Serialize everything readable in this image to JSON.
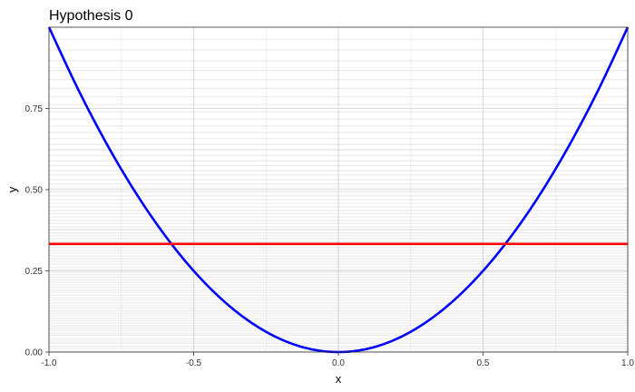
{
  "chart_data": {
    "type": "line",
    "title": "Hypothesis 0",
    "xlabel": "x",
    "ylabel": "y",
    "xlim": [
      -1.0,
      1.0
    ],
    "ylim": [
      0.0,
      1.0
    ],
    "grid": true,
    "legend": "none",
    "x_ticks": [
      -1.0,
      -0.5,
      0.0,
      0.5,
      1.0
    ],
    "x_tick_labels": [
      "-1.0",
      "-0.5",
      "0.0",
      "0.5",
      "1.0"
    ],
    "y_ticks": [
      0.0,
      0.25,
      0.5,
      0.75
    ],
    "y_tick_labels": [
      "0.00",
      "0.25",
      "0.50",
      "0.75"
    ],
    "series": [
      {
        "color": "#0000ff",
        "x": [
          -1.0,
          -0.9,
          -0.8,
          -0.7,
          -0.6,
          -0.5,
          -0.4,
          -0.3,
          -0.2,
          -0.1,
          0.0,
          0.1,
          0.2,
          0.3,
          0.4,
          0.5,
          0.6,
          0.7,
          0.8,
          0.9,
          1.0
        ],
        "y": [
          1.0,
          0.81,
          0.64,
          0.49,
          0.36,
          0.25,
          0.16,
          0.09,
          0.04,
          0.01,
          0.0,
          0.01,
          0.04,
          0.09,
          0.16,
          0.25,
          0.36,
          0.49,
          0.64,
          0.81,
          1.0
        ]
      },
      {
        "color": "#ff0000",
        "x": [
          -1.0,
          1.0
        ],
        "y": [
          0.333,
          0.333
        ]
      }
    ],
    "background_lines": {
      "color": "#000000",
      "y": [
        0.003,
        0.011,
        0.018,
        0.027,
        0.034,
        0.041,
        0.052,
        0.058,
        0.066,
        0.073,
        0.081,
        0.089,
        0.097,
        0.104,
        0.112,
        0.119,
        0.128,
        0.136,
        0.143,
        0.151,
        0.16,
        0.167,
        0.175,
        0.183,
        0.19,
        0.199,
        0.207,
        0.214,
        0.222,
        0.23,
        0.238,
        0.247,
        0.254,
        0.262,
        0.271,
        0.279,
        0.287,
        0.296,
        0.305,
        0.313,
        0.322,
        0.331,
        0.34,
        0.349,
        0.358,
        0.367,
        0.377,
        0.386,
        0.396,
        0.405,
        0.416,
        0.426,
        0.436,
        0.447,
        0.458,
        0.469,
        0.481,
        0.493,
        0.505,
        0.518,
        0.531,
        0.545,
        0.559,
        0.574,
        0.589,
        0.605,
        0.622,
        0.639,
        0.657,
        0.676,
        0.696,
        0.717,
        0.739,
        0.762,
        0.786,
        0.812,
        0.839,
        0.867,
        0.897,
        0.93,
        0.962
      ]
    }
  }
}
